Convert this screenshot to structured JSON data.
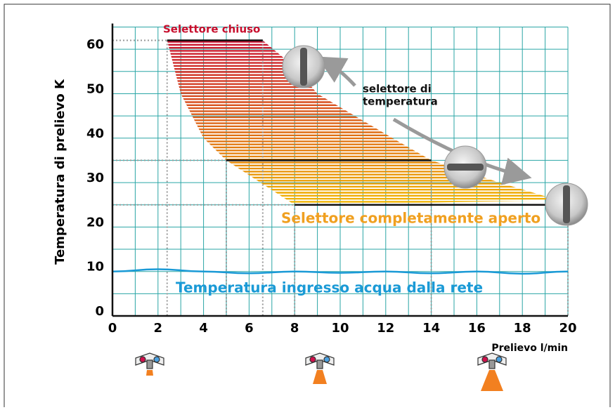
{
  "chart_data": {
    "type": "range",
    "xlabel": "Prelievo l/min",
    "ylabel": "Temperatura di prelievo K",
    "xlim": [
      0,
      20
    ],
    "ylim": [
      0,
      65
    ],
    "xticks": [
      0,
      2,
      4,
      6,
      8,
      10,
      12,
      14,
      16,
      18,
      20
    ],
    "yticks": [
      0,
      10,
      20,
      30,
      40,
      50,
      60
    ],
    "minor_xticks": [
      1,
      3,
      5,
      7,
      9,
      11,
      13,
      15,
      17,
      19
    ],
    "minor_yticks": [
      5,
      15,
      25,
      35,
      45,
      55,
      65
    ],
    "grid": true,
    "grid_color": "#2aa6a6",
    "region": {
      "colors": [
        "#c8102e",
        "#f2b600"
      ],
      "left": {
        "x": [
          2.4,
          3,
          4,
          5,
          6.5,
          8
        ],
        "values": [
          62,
          50,
          40,
          35,
          30,
          25
        ]
      },
      "right": {
        "x": [
          6.6,
          8,
          9,
          12.3,
          14,
          17,
          19.6
        ],
        "values": [
          62,
          56,
          50,
          40,
          35,
          30,
          26
        ]
      }
    },
    "series": [
      {
        "name": "Selettore chiuso",
        "color": "#c8102e",
        "x": [
          2.4,
          6.6
        ],
        "values": [
          62,
          62
        ]
      },
      {
        "x": [
          5,
          14
        ],
        "values": [
          35,
          35
        ]
      },
      {
        "name": "Selettore completamente aperto",
        "color": "#f0a020",
        "x": [
          8,
          20
        ],
        "values": [
          25,
          25
        ]
      }
    ],
    "water": {
      "name": "Temperatura ingresso acqua dalla rete",
      "color": "#1a9ad6",
      "x": [
        0,
        2,
        4,
        6,
        8,
        10,
        12,
        14,
        16,
        18,
        20
      ],
      "values": [
        10,
        10.5,
        10,
        9.6,
        10,
        9.7,
        10,
        9.6,
        10,
        9.5,
        10
      ]
    },
    "annotation": [
      "selettore di",
      "temperatura"
    ]
  }
}
